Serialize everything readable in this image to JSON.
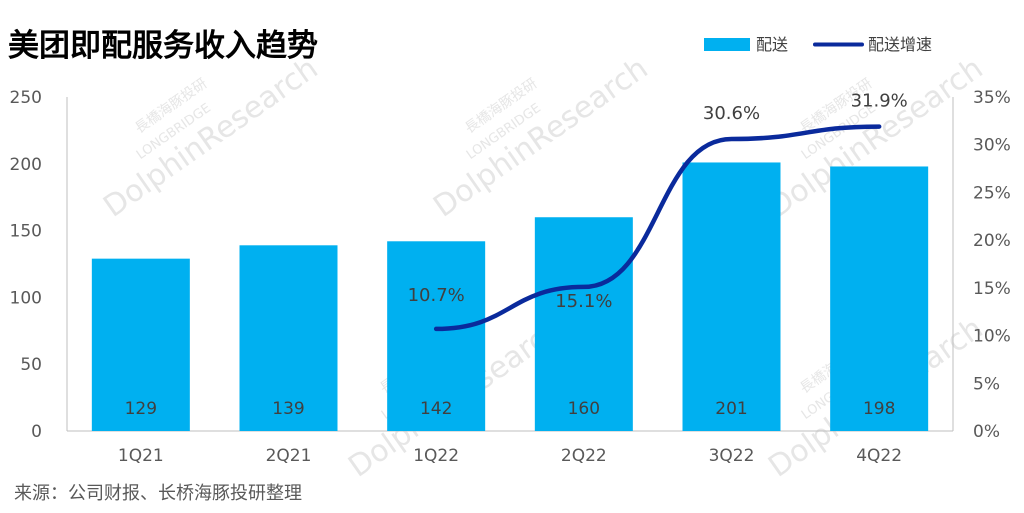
{
  "title": "美团即配服务收入趋势",
  "source": "来源：公司财报、长桥海豚投研整理",
  "watermark": {
    "line1": "長橋海豚投研",
    "line2": "LONGBRIDGE",
    "line3": "DolphinResearch"
  },
  "colors": {
    "bar": "#00b0f0",
    "line": "#0a2a9c",
    "axis": "#bfbfbf",
    "title": "#000000",
    "text": "#404040"
  },
  "legend": {
    "bar_label": "配送",
    "line_label": "配送增速"
  },
  "chart_data": {
    "type": "bar",
    "categories": [
      "1Q21",
      "2Q21",
      "1Q22",
      "2Q22",
      "3Q22",
      "4Q22"
    ],
    "series": [
      {
        "name": "配送",
        "type": "bar",
        "axis": "left",
        "values": [
          129,
          139,
          142,
          160,
          201,
          198
        ],
        "labels": [
          "129",
          "139",
          "142",
          "160",
          "201",
          "198"
        ]
      },
      {
        "name": "配送增速",
        "type": "line",
        "axis": "right",
        "values": [
          null,
          null,
          10.7,
          15.1,
          30.6,
          31.9
        ],
        "labels": [
          "",
          "",
          "10.7%",
          "15.1%",
          "30.6%",
          "31.9%"
        ]
      }
    ],
    "y_left": {
      "min": 0,
      "max": 250,
      "ticks": [
        0,
        50,
        100,
        150,
        200,
        250
      ],
      "tick_labels": [
        "0",
        "50",
        "100",
        "150",
        "200",
        "250"
      ]
    },
    "y_right": {
      "min": 0,
      "max": 35,
      "ticks": [
        0,
        5,
        10,
        15,
        20,
        25,
        30,
        35
      ],
      "tick_labels": [
        "0%",
        "5%",
        "10%",
        "15%",
        "20%",
        "25%",
        "30%",
        "35%"
      ]
    },
    "grid": false,
    "legend_position": "top-right"
  }
}
